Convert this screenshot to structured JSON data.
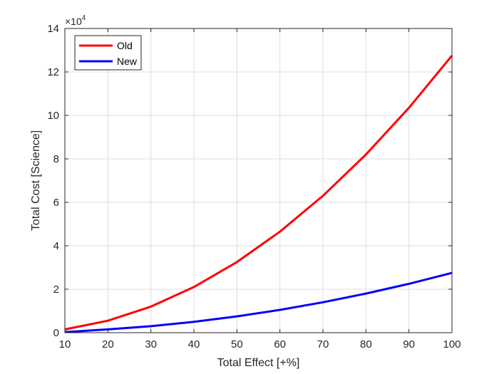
{
  "chart_data": {
    "type": "line",
    "title": "",
    "xlabel": "Total Effect [+%]",
    "ylabel": "Total Cost [Science]",
    "y_exponent_label": {
      "base": "×10",
      "power": "4"
    },
    "x": [
      10,
      20,
      30,
      40,
      50,
      60,
      70,
      80,
      90,
      100
    ],
    "xlim": [
      10,
      100
    ],
    "ylim": [
      0,
      14
    ],
    "x_ticks": [
      10,
      20,
      30,
      40,
      50,
      60,
      70,
      80,
      90,
      100
    ],
    "y_ticks": [
      0,
      2,
      4,
      6,
      8,
      10,
      12,
      14
    ],
    "grid": true,
    "legend_position": "top-left",
    "series": [
      {
        "name": "Old",
        "color": "#ff0000",
        "values": [
          0.15,
          0.55,
          1.2,
          2.1,
          3.25,
          4.65,
          6.3,
          8.2,
          10.35,
          12.75
        ]
      },
      {
        "name": "New",
        "color": "#0000ff",
        "values": [
          0.03,
          0.15,
          0.3,
          0.5,
          0.75,
          1.05,
          1.4,
          1.8,
          2.25,
          2.75
        ]
      }
    ]
  }
}
